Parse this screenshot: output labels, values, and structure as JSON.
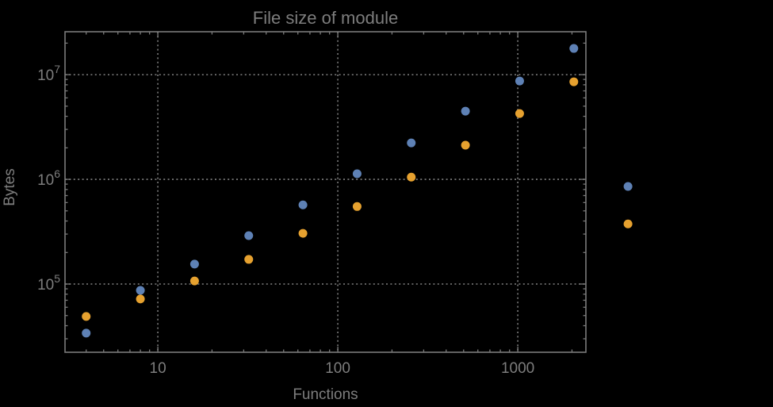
{
  "chart_data": {
    "type": "scatter",
    "title": "File size of module",
    "xlabel": "Functions",
    "ylabel": "Bytes",
    "x_scale": "log",
    "y_scale": "log",
    "xlim": [
      3.05,
      2390
    ],
    "ylim": [
      22300,
      25700000
    ],
    "grid": {
      "style": "dotted",
      "x_lines": [
        10,
        100,
        1000
      ],
      "y_lines": [
        100000,
        1000000,
        10000000
      ]
    },
    "x_ticks": {
      "major": [
        10,
        100,
        1000
      ],
      "labels": [
        "10",
        "100",
        "1000"
      ]
    },
    "y_ticks": {
      "major": [
        100000,
        1000000,
        10000000
      ],
      "labels": [
        {
          "base": "10",
          "exp": "5"
        },
        {
          "base": "10",
          "exp": "6"
        },
        {
          "base": "10",
          "exp": "7"
        }
      ]
    },
    "series": [
      {
        "name": "blue-series",
        "color": "#5e81b5",
        "marker": "circle",
        "x": [
          4,
          8,
          16,
          32,
          64,
          128,
          256,
          512,
          1024,
          2048,
          4096
        ],
        "y": [
          34000,
          87000,
          155000,
          290000,
          570000,
          1130000,
          2230000,
          4480000,
          8700000,
          17800000,
          855000
        ]
      },
      {
        "name": "orange-series",
        "color": "#e6a12f",
        "marker": "circle",
        "x": [
          4,
          8,
          16,
          32,
          64,
          128,
          256,
          512,
          1024,
          2048,
          4096
        ],
        "y": [
          49000,
          72000,
          107000,
          172000,
          305000,
          550000,
          1050000,
          2120000,
          4250000,
          8550000,
          375000
        ]
      }
    ],
    "marker_diameter_px": 11
  },
  "colors": {
    "background": "#000000",
    "frame": "#7a7a7a",
    "grid": "#6f6f6f",
    "text": "#7d7d7d"
  }
}
